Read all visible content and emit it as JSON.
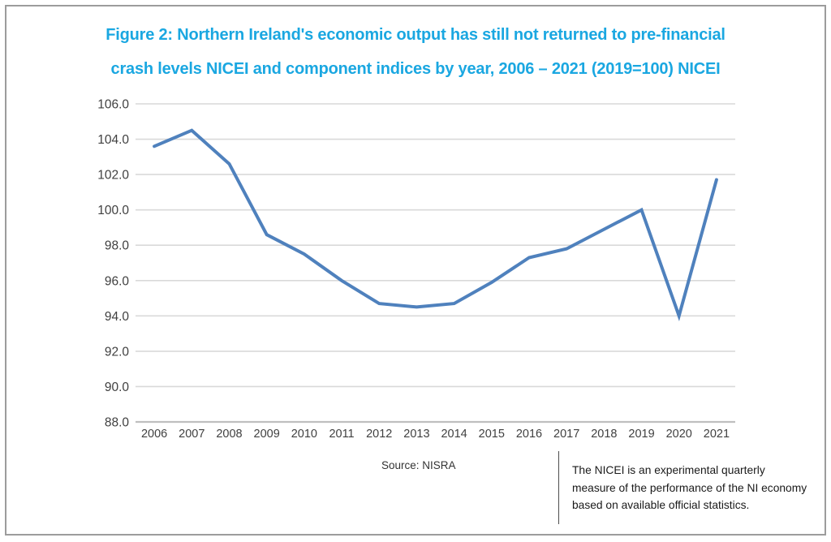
{
  "page": {
    "title_line1": "Figure 2: Northern Ireland's economic output has still not returned to pre-financial",
    "title_line2": "crash levels NICEI and component indices by year, 2006 – 2021 (2019=100) NICEI",
    "source": "Source: NISRA",
    "annotation": {
      "lines": [
        "The NICEI is an experimental quarterly",
        "measure of the performance of the NI economy",
        "based on available official statistics."
      ]
    }
  },
  "colors": {
    "title": "#1AA7E1",
    "series_line": "#4F81BD",
    "gridline": "#D9D9D9",
    "axis_line": "#BFBFBF",
    "tick_text": "#404040",
    "page_border": "#9C9C9C"
  },
  "chart_data": {
    "type": "line",
    "title": "NICEI and component indices by year, 2006 – 2021 (2019=100)",
    "categories": [
      "2006",
      "2007",
      "2008",
      "2009",
      "2010",
      "2011",
      "2012",
      "2013",
      "2014",
      "2015",
      "2016",
      "2017",
      "2018",
      "2019",
      "2020",
      "2021"
    ],
    "series": [
      {
        "name": "NICEI",
        "values": [
          103.6,
          104.5,
          102.6,
          98.6,
          97.5,
          96.0,
          94.7,
          94.5,
          94.7,
          95.9,
          97.3,
          97.8,
          98.9,
          100.0,
          94.0,
          101.7
        ]
      }
    ],
    "ylim": [
      88.0,
      106.0
    ],
    "ytick_step": 2.0,
    "xlabel": "",
    "ylabel": "",
    "grid": "horizontal",
    "legend": "none"
  }
}
